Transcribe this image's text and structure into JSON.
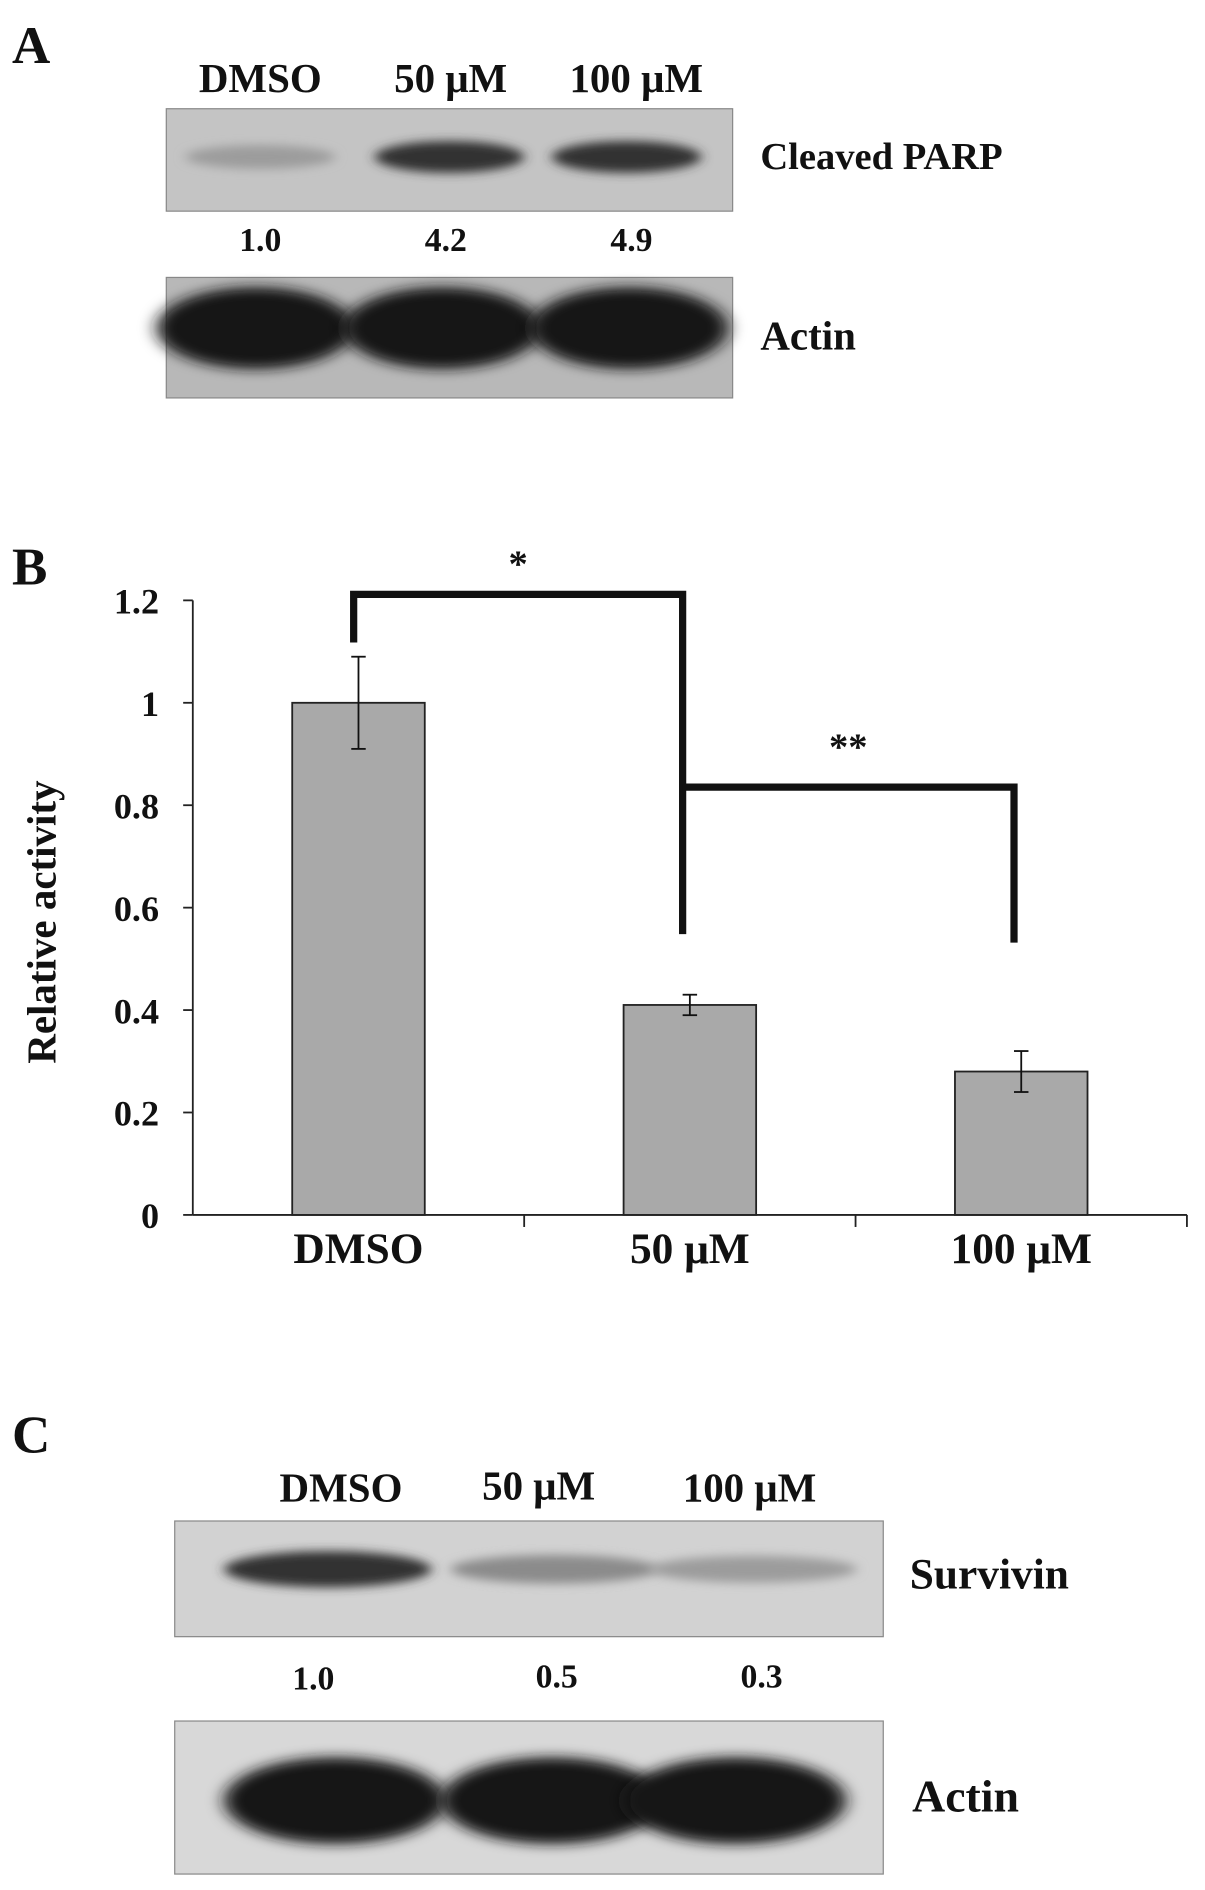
{
  "panel_a": {
    "label": "A",
    "lanes": [
      "DMSO",
      "50 μM",
      "100 μM"
    ],
    "blots": [
      {
        "name": "Cleaved PARP",
        "quantification": [
          "1.0",
          "4.2",
          "4.9"
        ],
        "intensity": [
          0.25,
          0.85,
          0.85
        ]
      },
      {
        "name": "Actin",
        "intensity": [
          1,
          1,
          1
        ]
      }
    ]
  },
  "panel_b": {
    "label": "B"
  },
  "chart_data": {
    "type": "bar",
    "categories": [
      "DMSO",
      "50 μM",
      "100 μM"
    ],
    "values": [
      1.0,
      0.41,
      0.28
    ],
    "errors": [
      0.09,
      0.02,
      0.04
    ],
    "ylabel": "Relative activity",
    "xlabel": "",
    "ylim": [
      0,
      1.2
    ],
    "yticks": [
      "0",
      "0.2",
      "0.4",
      "0.6",
      "0.8",
      "1",
      "1.2"
    ],
    "grid": false,
    "bar_color": "#a9a9a9",
    "significance": [
      {
        "from": "DMSO",
        "to": "50 μM",
        "label": "*"
      },
      {
        "from": "50 μM",
        "to": "100 μM",
        "label": "**"
      }
    ]
  },
  "panel_c": {
    "label": "C",
    "lanes": [
      "DMSO",
      "50 μM",
      "100 μM"
    ],
    "blots": [
      {
        "name": "Survivin",
        "quantification": [
          "1.0",
          "0.5",
          "0.3"
        ],
        "intensity": [
          0.85,
          0.35,
          0.25
        ]
      },
      {
        "name": "Actin",
        "intensity": [
          1,
          1,
          1
        ]
      }
    ]
  }
}
